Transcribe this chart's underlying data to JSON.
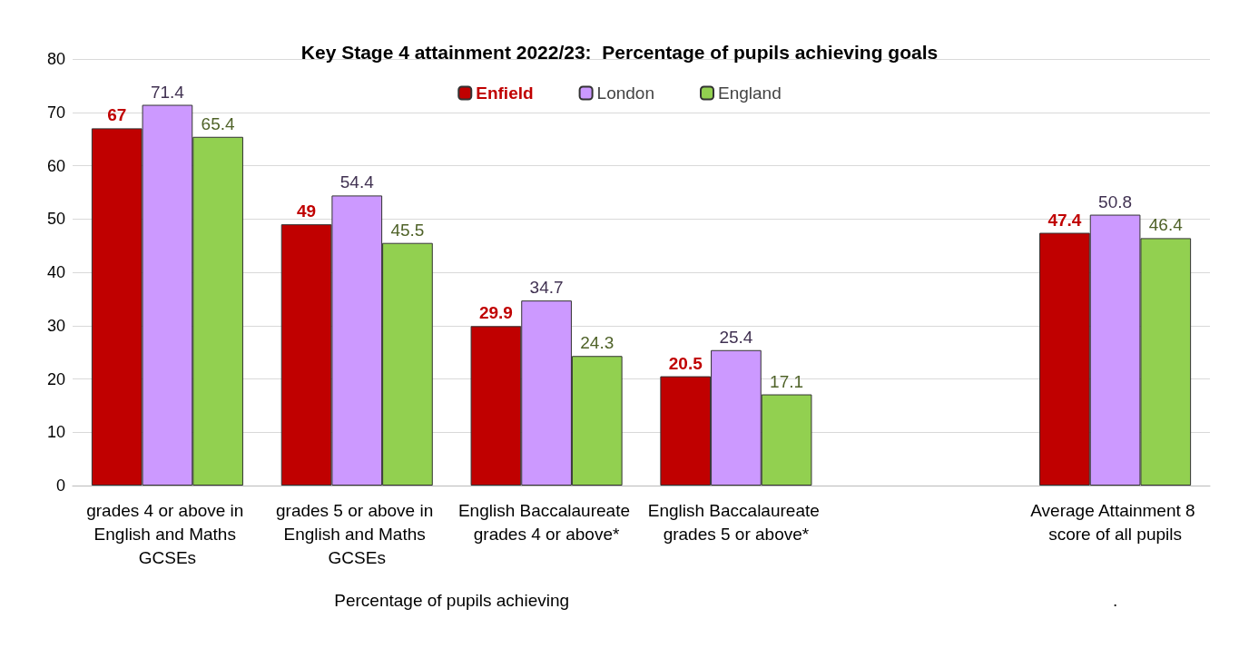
{
  "chart_data": {
    "type": "bar",
    "title": "Key Stage 4 attainment 2022/23:  Percentage of pupils achieving goals",
    "categories": [
      "grades 4 or above in English and Maths GCSEs",
      "grades 5 or above in English and Maths GCSEs",
      "English Baccalaureate grades 4 or above*",
      "English Baccalaureate grades 5 or above*",
      null,
      "Average Attainment 8 score of all pupils"
    ],
    "series": [
      {
        "name": "Enfield",
        "color": "#c00000",
        "values": [
          67,
          49,
          29.9,
          20.5,
          null,
          47.4
        ]
      },
      {
        "name": "London",
        "color": "#cc99ff",
        "values": [
          71.4,
          54.4,
          34.7,
          25.4,
          null,
          50.8
        ]
      },
      {
        "name": "England",
        "color": "#92d050",
        "values": [
          65.4,
          45.5,
          24.3,
          17.1,
          null,
          46.4
        ]
      }
    ],
    "annotations": [
      "Percentage of pupils achieving",
      "."
    ],
    "ylim": [
      0,
      80
    ],
    "yticks": [
      0,
      10,
      20,
      30,
      40,
      50,
      60,
      70,
      80
    ],
    "grid": "y",
    "legend": "top",
    "data_labels": true
  }
}
